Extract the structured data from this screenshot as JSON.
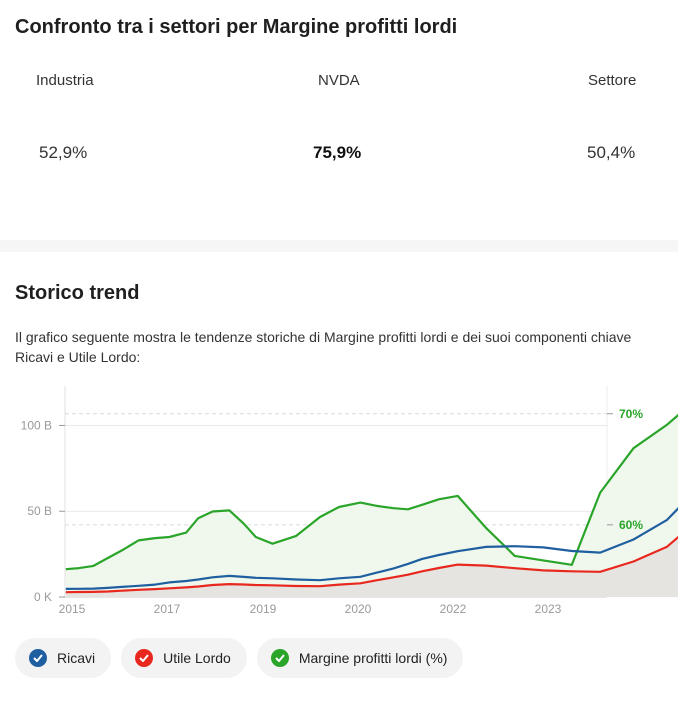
{
  "compare": {
    "title": "Confronto tra i settori per Margine profitti lordi",
    "industry_label": "Industria",
    "company_label": "NVDA",
    "sector_label": "Settore",
    "industry_value": "52,9%",
    "company_value": "75,9%",
    "sector_value": "50,4%"
  },
  "trend": {
    "title": "Storico trend",
    "description": "Il grafico seguente mostra le tendenze storiche di Margine profitti lordi e dei suoi componenti chiave Ricavi e Utile Lordo:"
  },
  "legend": [
    {
      "label": "Ricavi",
      "color": "#1f5fa0"
    },
    {
      "label": "Utile Lordo",
      "color": "#e8281e"
    },
    {
      "label": "Margine profitti lordi (%)",
      "color": "#2aa52a"
    }
  ],
  "chart_data": {
    "type": "line",
    "x": [
      2014.87,
      2015.15,
      2015.45,
      2015.75,
      2016.05,
      2016.4,
      2016.75,
      2017.05,
      2017.4,
      2017.65,
      2017.95,
      2018.3,
      2018.6,
      2018.85,
      2019.1,
      2019.35,
      2019.6,
      2019.8,
      2020.05,
      2020.4,
      2020.75,
      2021.05,
      2021.35,
      2021.7,
      2022.05,
      2022.35,
      2022.65,
      2022.95,
      2023.25,
      2023.55,
      2023.9,
      2024.25,
      2024.55,
      2024.75
    ],
    "x_ticks": [
      "2015",
      "2017",
      "2019",
      "2020",
      "2022",
      "2023"
    ],
    "x_tick_positions": [
      2015,
      2017,
      2019,
      2020,
      2022,
      2023
    ],
    "y_left_ticks": [
      "0 K",
      "50 B",
      "100 B"
    ],
    "y_left_tick_values": [
      0,
      50,
      100
    ],
    "y_left_range": [
      0,
      123
    ],
    "y_right_ticks": [
      "60%",
      "70%"
    ],
    "y_right_tick_values": [
      60,
      70
    ],
    "y_right_range": [
      53.5,
      72.5
    ],
    "series": [
      {
        "name": "Ricavi",
        "axis": "left",
        "color": "#1f5fa0",
        "values": [
          4.7,
          4.8,
          4.9,
          5.3,
          5.9,
          6.5,
          7.2,
          8.5,
          9.3,
          10.2,
          11.5,
          12.3,
          11.7,
          11.2,
          10.9,
          10.2,
          9.8,
          10.9,
          11.8,
          14.2,
          16.7,
          19.3,
          22.2,
          24.5,
          26.7,
          29.2,
          29.6,
          28.9,
          26.8,
          25.9,
          33.5,
          44.8,
          61.8,
          80.8
        ]
      },
      {
        "name": "Utile Lordo",
        "axis": "left",
        "color": "#e8281e",
        "values": [
          2.8,
          2.9,
          3.0,
          3.2,
          3.7,
          4.2,
          4.6,
          5.1,
          5.6,
          6.1,
          7.0,
          7.5,
          7.3,
          7.0,
          6.8,
          6.4,
          6.3,
          7.2,
          8.0,
          9.8,
          11.5,
          13.0,
          15.0,
          16.9,
          18.9,
          18.3,
          16.8,
          15.5,
          15.0,
          14.7,
          20.7,
          29.2,
          43.4,
          60.4
        ]
      },
      {
        "name": "Margine profitti lordi (%)",
        "axis": "right",
        "color": "#2aa52a",
        "values": [
          56.0,
          56.1,
          56.3,
          57.0,
          57.7,
          58.6,
          58.8,
          58.9,
          59.3,
          60.6,
          61.2,
          61.3,
          60.1,
          58.9,
          58.3,
          59.0,
          60.7,
          61.6,
          62.0,
          61.7,
          61.5,
          61.4,
          61.8,
          62.3,
          62.6,
          59.7,
          57.2,
          56.8,
          56.4,
          62.9,
          66.9,
          69.0,
          71.2,
          71.6
        ]
      }
    ]
  }
}
